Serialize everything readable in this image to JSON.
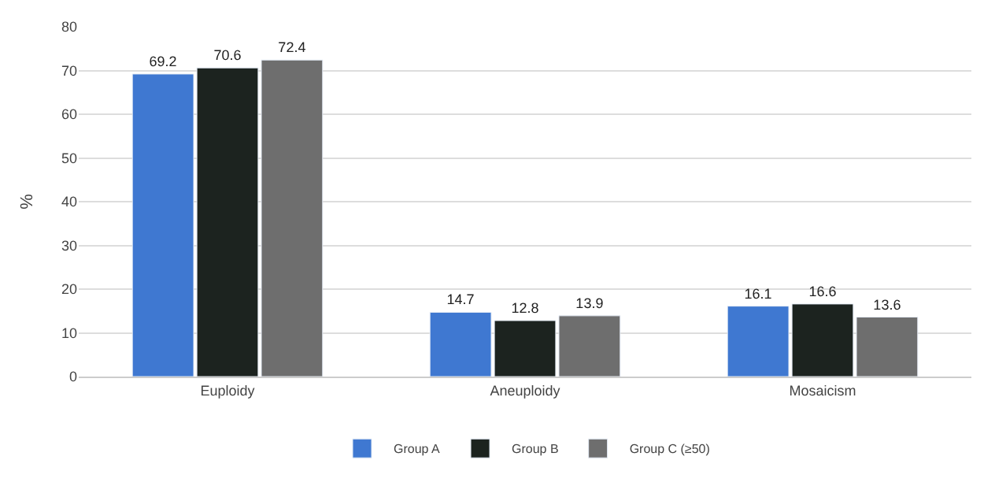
{
  "chart_data": {
    "type": "bar",
    "ylabel": "%",
    "categories": [
      "Euploidy",
      "Aneuploidy",
      "Mosaicism"
    ],
    "series": [
      {
        "name": "Group A",
        "color": "#3f78d1",
        "values": [
          69.2,
          14.7,
          16.1
        ]
      },
      {
        "name": "Group B",
        "color": "#1c231f",
        "values": [
          70.6,
          12.8,
          16.6
        ]
      },
      {
        "name": "Group C (≥50)",
        "color": "#6e6e6e",
        "values": [
          72.4,
          13.9,
          13.6
        ]
      }
    ],
    "ylim": [
      0,
      80
    ],
    "yticks": [
      0,
      10,
      20,
      30,
      40,
      50,
      60,
      70,
      80
    ],
    "grid": "y",
    "legend": "bottom",
    "data_labels": true
  }
}
